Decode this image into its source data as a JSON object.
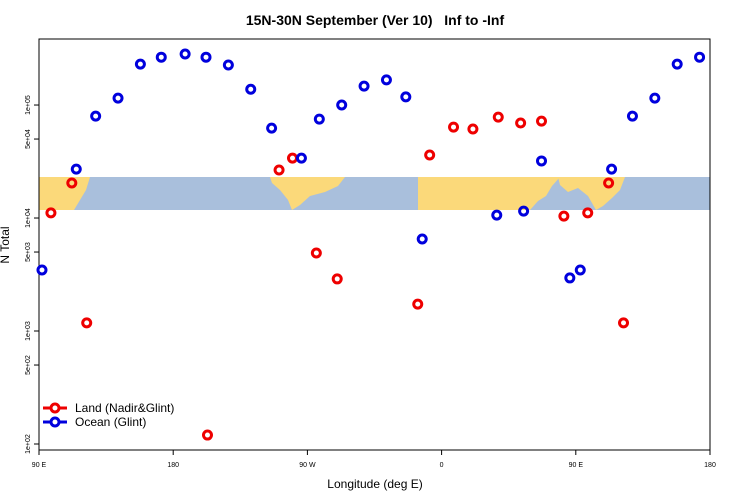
{
  "chart_data": {
    "type": "scatter",
    "title": "15N-30N September (Ver 10)   Inf to -Inf",
    "xlabel": "Longitude (deg E)",
    "ylabel": "N Total",
    "xlim": [
      90,
      540
    ],
    "xticks": [
      {
        "value": 90,
        "label": "90 E"
      },
      {
        "value": 180,
        "label": "180"
      },
      {
        "value": 270,
        "label": "90 W"
      },
      {
        "value": 360,
        "label": "0"
      },
      {
        "value": 450,
        "label": "90 E"
      },
      {
        "value": 540,
        "label": "180"
      }
    ],
    "ylim": [
      88.5,
      384000
    ],
    "ylog": true,
    "yticks": [
      {
        "value": 100,
        "label": "1e+02"
      },
      {
        "value": 500,
        "label": "5e+02"
      },
      {
        "value": 1000,
        "label": "1e+03"
      },
      {
        "value": 5000,
        "label": "5e+03"
      },
      {
        "value": 10000,
        "label": "1e+04"
      },
      {
        "value": 50000,
        "label": "5e+04"
      },
      {
        "value": 100000,
        "label": "1e+05"
      }
    ],
    "legend": "bottom-left",
    "series": [
      {
        "name": "Land (Nadir&Glint)",
        "color": "#ee0000",
        "x": [
          98,
          112,
          122,
          203,
          251,
          260,
          276,
          290,
          344,
          352,
          368,
          381,
          398,
          413,
          427,
          442,
          458,
          472,
          482
        ],
        "values": [
          11100,
          20400,
          1180,
          120,
          26600,
          33900,
          4900,
          2890,
          1730,
          36100,
          63800,
          61400,
          78200,
          69300,
          72000,
          10400,
          11100,
          20400,
          1180
        ]
      },
      {
        "name": "Ocean (Glint)",
        "color": "#0000dd",
        "x": [
          92,
          115,
          128,
          143,
          158,
          172,
          188,
          202,
          217,
          232,
          246,
          266,
          278,
          293,
          308,
          323,
          336,
          347,
          397,
          415,
          427,
          446,
          453,
          474,
          488,
          503,
          518,
          533
        ],
        "values": [
          3470,
          27100,
          79800,
          115000,
          230000,
          265000,
          283000,
          265000,
          226000,
          138000,
          62500,
          33900,
          75100,
          100000,
          147000,
          167000,
          118000,
          6520,
          10600,
          11500,
          32000,
          2950,
          3470,
          27100,
          79800,
          115000,
          230000,
          265000
        ]
      }
    ]
  }
}
